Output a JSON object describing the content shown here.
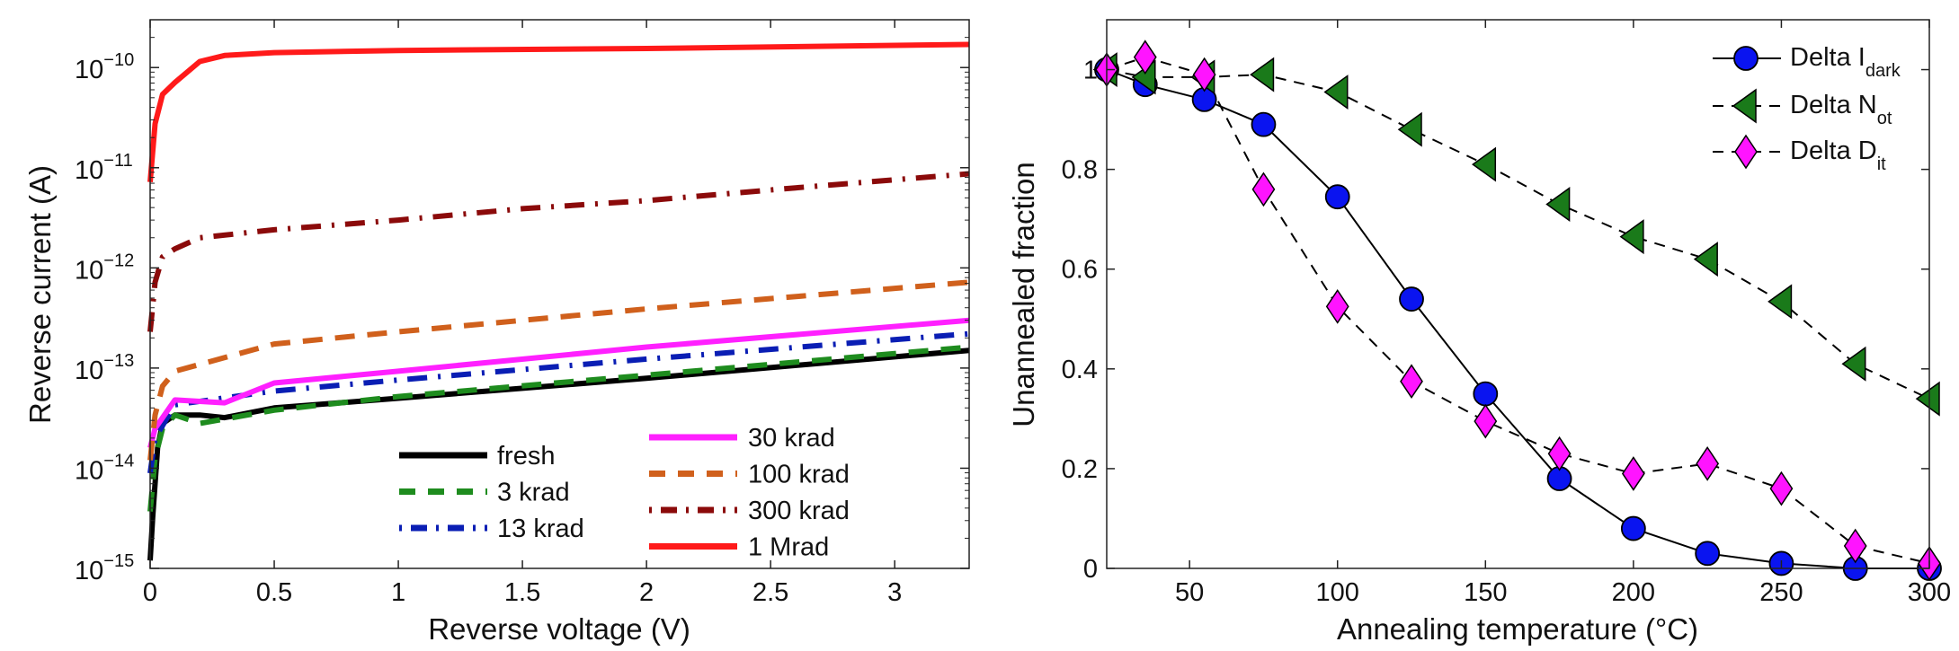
{
  "chart_data": [
    {
      "type": "line",
      "xlabel": "Reverse voltage (V)",
      "ylabel": "Reverse current (A)",
      "xlim": [
        0,
        3.3
      ],
      "ylim": [
        1e-15,
        3e-10
      ],
      "yscale": "log",
      "xticks": [
        "0",
        "0.5",
        "1",
        "1.5",
        "2",
        "2.5",
        "3"
      ],
      "yticks": [
        {
          "base": "10",
          "exp": "−15"
        },
        {
          "base": "10",
          "exp": "−14"
        },
        {
          "base": "10",
          "exp": "−13"
        },
        {
          "base": "10",
          "exp": "−12"
        },
        {
          "base": "10",
          "exp": "−11"
        },
        {
          "base": "10",
          "exp": "−10"
        }
      ],
      "grid": false,
      "legend_placement": "bottom",
      "series": [
        {
          "name": "fresh",
          "color": "#000000",
          "style": "solid",
          "x": [
            0,
            0.01,
            0.03,
            0.05,
            0.1,
            0.2,
            0.3,
            0.5,
            1,
            2,
            3.3
          ],
          "y": [
            1.2e-15,
            3.2e-15,
            1.6e-14,
            2.8e-14,
            3.4e-14,
            3.4e-14,
            3.2e-14,
            4e-14,
            5e-14,
            7.9e-14,
            1.5e-13
          ]
        },
        {
          "name": "3 krad",
          "color": "#1e8c1e",
          "style": "dashed",
          "x": [
            0,
            0.02,
            0.05,
            0.1,
            0.2,
            0.5,
            1,
            2,
            3.3
          ],
          "y": [
            3.7e-15,
            1.26e-14,
            2.5e-14,
            3.4e-14,
            2.8e-14,
            3.8e-14,
            5.2e-14,
            8.5e-14,
            1.62e-13
          ]
        },
        {
          "name": "13 krad",
          "color": "#0a1eb4",
          "style": "dashdot",
          "x": [
            0,
            0.02,
            0.1,
            0.5,
            1,
            2,
            3.3
          ],
          "y": [
            8.9e-15,
            2e-14,
            4.3e-14,
            5.9e-14,
            7.6e-14,
            1.23e-13,
            2.2e-13
          ]
        },
        {
          "name": "30 krad",
          "color": "#ff20ff",
          "style": "solid",
          "x": [
            0,
            0.02,
            0.1,
            0.3,
            0.5,
            1,
            2,
            3.3
          ],
          "y": [
            1.6e-14,
            2.5e-14,
            4.8e-14,
            4.5e-14,
            7.1e-14,
            9.3e-14,
            1.62e-13,
            3e-13
          ]
        },
        {
          "name": "100 krad",
          "color": "#d0601c",
          "style": "dashed",
          "x": [
            0,
            0.02,
            0.05,
            0.1,
            0.5,
            1,
            2,
            3.3
          ],
          "y": [
            1.2e-14,
            3.4e-14,
            6.6e-14,
            9.3e-14,
            1.74e-13,
            2.3e-13,
            3.9e-13,
            7.2e-13
          ]
        },
        {
          "name": "300 krad",
          "color": "#8b0a0a",
          "style": "dashdot",
          "x": [
            0,
            0.02,
            0.05,
            0.1,
            0.2,
            0.5,
            1,
            1.5,
            2,
            2.6,
            3.3
          ],
          "y": [
            2.3e-13,
            7.2e-13,
            1.29e-12,
            1.55e-12,
            2e-12,
            2.4e-12,
            3e-12,
            3.9e-12,
            4.7e-12,
            6.3e-12,
            8.7e-12
          ]
        },
        {
          "name": "1 Mrad",
          "color": "#ff1a1a",
          "style": "solid",
          "x": [
            0,
            0.02,
            0.05,
            0.1,
            0.2,
            0.3,
            0.5,
            1,
            2,
            3.3
          ],
          "y": [
            7.2e-12,
            2.75e-11,
            5.4e-11,
            7.1e-11,
            1.15e-10,
            1.32e-10,
            1.41e-10,
            1.48e-10,
            1.55e-10,
            1.7e-10
          ]
        }
      ]
    },
    {
      "type": "line",
      "xlabel": "Annealing temperature (°C)",
      "ylabel": "Unannealed fraction",
      "xlim": [
        22,
        300
      ],
      "ylim": [
        0,
        1.1
      ],
      "xticks": [
        "50",
        "100",
        "150",
        "200",
        "250",
        "300"
      ],
      "yticks": [
        "0",
        "0.2",
        "0.4",
        "0.6",
        "0.8",
        "1"
      ],
      "grid": false,
      "legend_placement": "top-right",
      "x": [
        22,
        35,
        55,
        75,
        100,
        125,
        150,
        175,
        200,
        225,
        250,
        275,
        300
      ],
      "series": [
        {
          "name": {
            "main": "Delta I",
            "sub": "dark"
          },
          "color": "#0a14f0",
          "marker": "circle",
          "style": "solid",
          "y": [
            1.0,
            0.97,
            0.94,
            0.89,
            0.745,
            0.54,
            0.35,
            0.18,
            0.08,
            0.03,
            0.01,
            0.0,
            0.0
          ]
        },
        {
          "name": {
            "main": "Delta N",
            "sub": "ot"
          },
          "color": "#1a7a1a",
          "marker": "triangle-left",
          "style": "dashed",
          "y": [
            1.0,
            0.985,
            0.985,
            0.99,
            0.955,
            0.88,
            0.81,
            0.73,
            0.665,
            0.62,
            0.535,
            0.41,
            0.34
          ]
        },
        {
          "name": {
            "main": "Delta D",
            "sub": "it"
          },
          "color": "#ff14ff",
          "marker": "diamond",
          "style": "dashed",
          "y": [
            1.0,
            1.025,
            0.99,
            0.76,
            0.525,
            0.375,
            0.295,
            0.23,
            0.19,
            0.21,
            0.16,
            0.045,
            0.01
          ]
        }
      ]
    }
  ]
}
